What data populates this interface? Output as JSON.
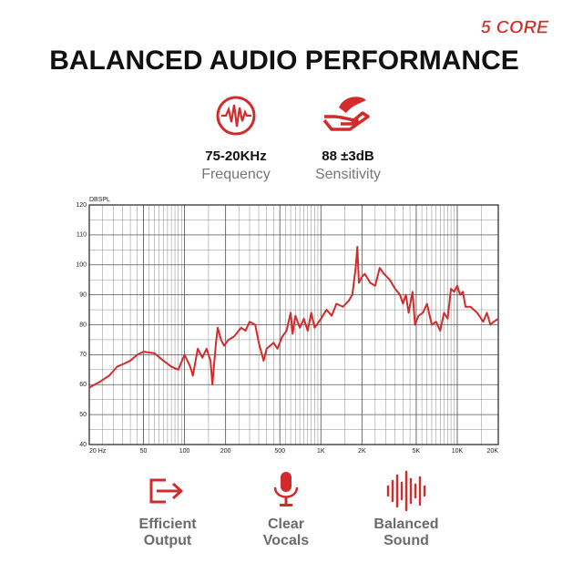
{
  "header": {
    "logo": "5 CORE",
    "title": "BALANCED AUDIO PERFORMANCE"
  },
  "specs": [
    {
      "value": "75-20KHz",
      "label": "Frequency"
    },
    {
      "value": "88 ±3dB",
      "label": "Sensitivity"
    }
  ],
  "chart_data": {
    "type": "line",
    "y_label": "DBSPL",
    "color": "#d22b2b",
    "log_x": true,
    "grid": true,
    "xlim": [
      20,
      20000
    ],
    "ylim": [
      40,
      120
    ],
    "xticks": [
      {
        "value": 20,
        "label": "20 Hz"
      },
      50,
      100,
      200,
      500,
      {
        "value": 1000,
        "label": "1K"
      },
      {
        "value": 2000,
        "label": "2K"
      },
      {
        "value": 5000,
        "label": "5K"
      },
      {
        "value": 10000,
        "label": "10K"
      },
      {
        "value": 20000,
        "label": "20K"
      }
    ],
    "yticks": [
      40,
      50,
      60,
      70,
      80,
      90,
      100,
      110,
      120
    ],
    "x": [
      20,
      24,
      28,
      32,
      36,
      40,
      45,
      50,
      60,
      70,
      80,
      90,
      100,
      110,
      115,
      125,
      135,
      145,
      155,
      160,
      170,
      175,
      185,
      195,
      210,
      230,
      260,
      280,
      300,
      330,
      350,
      380,
      400,
      450,
      480,
      520,
      560,
      600,
      620,
      650,
      700,
      750,
      800,
      850,
      900,
      1000,
      1100,
      1200,
      1300,
      1450,
      1600,
      1700,
      1800,
      1850,
      1900,
      2000,
      2100,
      2300,
      2500,
      2700,
      2900,
      3200,
      3500,
      3800,
      4000,
      4200,
      4400,
      4700,
      4900,
      5200,
      5600,
      6000,
      6500,
      7000,
      7500,
      8000,
      8500,
      9000,
      9500,
      10000,
      10500,
      11000,
      11500,
      12500,
      14000,
      15500,
      16500,
      17500,
      18500,
      20000
    ],
    "values": [
      59,
      61,
      63,
      66,
      67,
      68,
      70,
      71,
      70.5,
      68,
      66,
      65,
      70,
      66,
      63,
      72,
      69,
      72,
      68,
      60,
      74,
      79,
      75,
      73,
      75,
      76,
      79,
      78,
      81,
      80,
      74,
      68,
      72,
      74,
      72,
      76,
      78,
      84,
      77,
      83,
      79,
      82,
      78,
      84,
      79,
      82,
      85,
      83,
      87,
      86,
      88,
      90,
      99,
      106,
      94,
      96,
      97,
      94,
      93,
      99,
      97,
      95,
      92,
      90,
      87,
      90,
      84,
      91,
      80,
      83,
      84,
      87,
      80,
      81,
      78,
      84,
      82,
      92,
      91,
      93,
      90,
      91,
      86,
      86,
      84,
      81,
      84,
      80,
      81,
      82
    ]
  },
  "features": [
    {
      "lines": [
        "Efficient",
        "Output"
      ]
    },
    {
      "lines": [
        "Clear",
        "Vocals"
      ]
    },
    {
      "lines": [
        "Balanced",
        "Sound"
      ]
    }
  ]
}
